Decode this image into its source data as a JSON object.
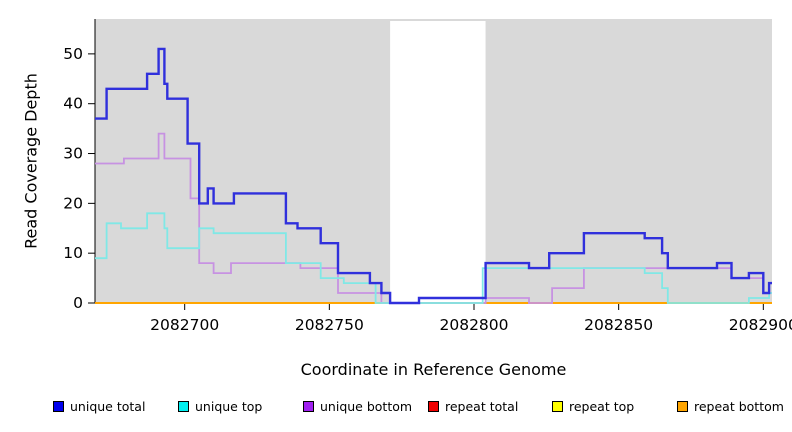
{
  "figure": {
    "type": "read-coverage-step-plot"
  },
  "chart_data": {
    "type": "line",
    "style": "step-after",
    "title": "",
    "xlabel": "Coordinate in Reference Genome",
    "ylabel": "Read Coverage Depth",
    "xlim": [
      2082669,
      2082903
    ],
    "ylim": [
      0,
      57
    ],
    "x_ticks": [
      2082700,
      2082750,
      2082800,
      2082850,
      2082900
    ],
    "y_ticks": [
      0,
      10,
      20,
      30,
      40,
      50
    ],
    "grid": false,
    "legend_position": "bottom",
    "background": {
      "panel_color": "#d9d9d9",
      "white_band_x": [
        2082771,
        2082804
      ]
    },
    "series": [
      {
        "name": "repeat total",
        "color": "#ee0000",
        "line_color": "#e05050",
        "lw": 1.6,
        "points": [
          [
            2082669,
            0
          ],
          [
            2082903,
            0
          ]
        ]
      },
      {
        "name": "repeat top",
        "color": "#ffff00",
        "line_color": "#ffff00",
        "lw": 1.6,
        "points": [
          [
            2082669,
            0
          ],
          [
            2082903,
            0
          ]
        ]
      },
      {
        "name": "repeat bottom",
        "color": "#ffa500",
        "line_color": "#ffa500",
        "lw": 2,
        "points": [
          [
            2082669,
            0
          ],
          [
            2082903,
            0
          ]
        ]
      },
      {
        "name": "unique bottom",
        "color": "#a020f0",
        "line_color": "#c792e2",
        "lw": 1.8,
        "points": [
          [
            2082669,
            28
          ],
          [
            2082679,
            29
          ],
          [
            2082691,
            34
          ],
          [
            2082693,
            29
          ],
          [
            2082702,
            21
          ],
          [
            2082705,
            8
          ],
          [
            2082710,
            6
          ],
          [
            2082716,
            8
          ],
          [
            2082740,
            7
          ],
          [
            2082753,
            2
          ],
          [
            2082768,
            0
          ],
          [
            2082804,
            1
          ],
          [
            2082819,
            0
          ],
          [
            2082827,
            3
          ],
          [
            2082838,
            7
          ],
          [
            2082889,
            5
          ],
          [
            2082900,
            2
          ],
          [
            2082903,
            2
          ]
        ]
      },
      {
        "name": "unique top",
        "color": "#00eeee",
        "line_color": "#80e8e6",
        "lw": 1.8,
        "points": [
          [
            2082669,
            9
          ],
          [
            2082673,
            16
          ],
          [
            2082678,
            15
          ],
          [
            2082687,
            18
          ],
          [
            2082693,
            15
          ],
          [
            2082694,
            11
          ],
          [
            2082705,
            15
          ],
          [
            2082710,
            14
          ],
          [
            2082735,
            8
          ],
          [
            2082747,
            5
          ],
          [
            2082755,
            4
          ],
          [
            2082766,
            0
          ],
          [
            2082803,
            7
          ],
          [
            2082859,
            6
          ],
          [
            2082865,
            3
          ],
          [
            2082867,
            0
          ],
          [
            2082895,
            1
          ],
          [
            2082902,
            2
          ],
          [
            2082903,
            2
          ]
        ]
      },
      {
        "name": "unique total",
        "color": "#0000ee",
        "line_color": "#3030dc",
        "lw": 2.4,
        "points": [
          [
            2082669,
            37
          ],
          [
            2082673,
            43
          ],
          [
            2082687,
            46
          ],
          [
            2082691,
            51
          ],
          [
            2082693,
            44
          ],
          [
            2082694,
            41
          ],
          [
            2082701,
            32
          ],
          [
            2082705,
            20
          ],
          [
            2082708,
            23
          ],
          [
            2082710,
            20
          ],
          [
            2082717,
            22
          ],
          [
            2082735,
            16
          ],
          [
            2082739,
            15
          ],
          [
            2082747,
            12
          ],
          [
            2082753,
            6
          ],
          [
            2082764,
            4
          ],
          [
            2082768,
            2
          ],
          [
            2082771,
            0
          ],
          [
            2082781,
            1
          ],
          [
            2082804,
            8
          ],
          [
            2082819,
            7
          ],
          [
            2082826,
            10
          ],
          [
            2082838,
            14
          ],
          [
            2082859,
            13
          ],
          [
            2082865,
            10
          ],
          [
            2082867,
            7
          ],
          [
            2082884,
            8
          ],
          [
            2082889,
            5
          ],
          [
            2082895,
            6
          ],
          [
            2082900,
            2
          ],
          [
            2082902,
            4
          ],
          [
            2082903,
            4
          ]
        ]
      }
    ]
  },
  "legend": {
    "items": [
      {
        "label": "unique total",
        "color": "#0000ee"
      },
      {
        "label": "unique top",
        "color": "#00eeee"
      },
      {
        "label": "unique bottom",
        "color": "#a020f0"
      },
      {
        "label": "repeat total",
        "color": "#ee0000"
      },
      {
        "label": "repeat top",
        "color": "#ffff00"
      },
      {
        "label": "repeat bottom",
        "color": "#ffa500"
      }
    ]
  }
}
